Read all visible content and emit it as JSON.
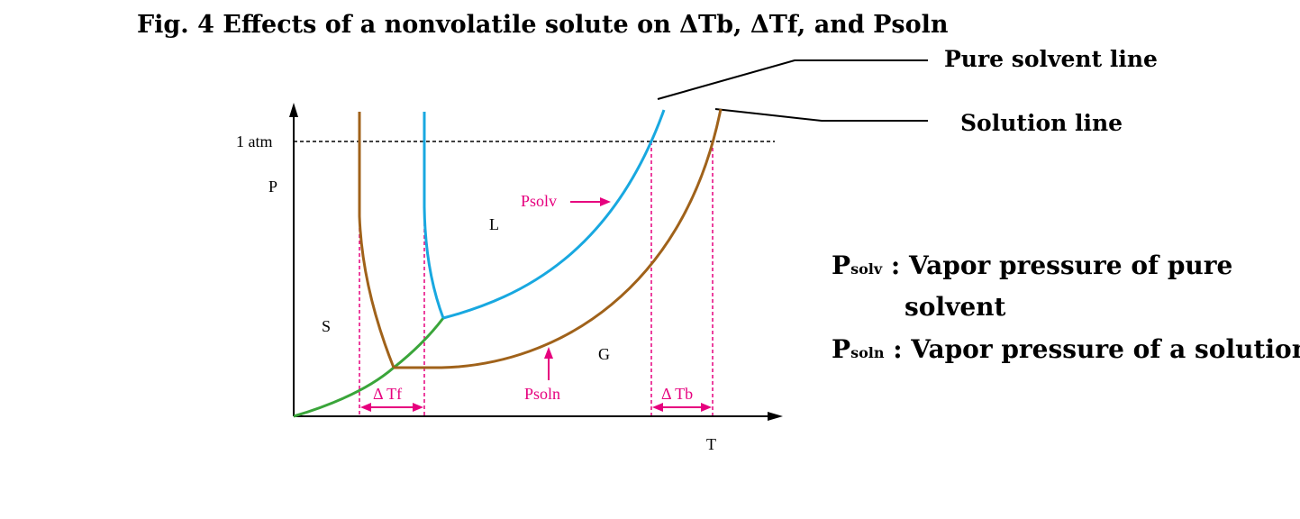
{
  "title": "Fig. 4 Effects of a nonvolatile solute on  ΔTb,  ΔTf, and Psoln",
  "callouts": {
    "pure_solvent": "Pure solvent line",
    "solution": "Solution line"
  },
  "axes": {
    "y_label": "P",
    "x_label": "T",
    "pressure_ref": "1 atm"
  },
  "regions": {
    "solid": "S",
    "liquid": "L",
    "gas": "G"
  },
  "annotations": {
    "psolv": "Psolv",
    "psoln": "Psoln",
    "delta_tf": "Δ Tf",
    "delta_tb": "Δ Tb"
  },
  "legend": [
    {
      "symbol": "P",
      "subscript": "solv",
      "text": " : Vapor pressure of pure"
    },
    {
      "continuation": "solvent"
    },
    {
      "symbol": "P",
      "subscript": "soln",
      "text": " : Vapor pressure of a solution"
    }
  ],
  "colors": {
    "pure_solvent_curve": "#18a8e0",
    "solution_curve": "#a0621a",
    "sublimation_curve": "#3aa53a",
    "marker_pink": "#e6007e",
    "axis": "#000000",
    "reference_line": "#000000"
  }
}
